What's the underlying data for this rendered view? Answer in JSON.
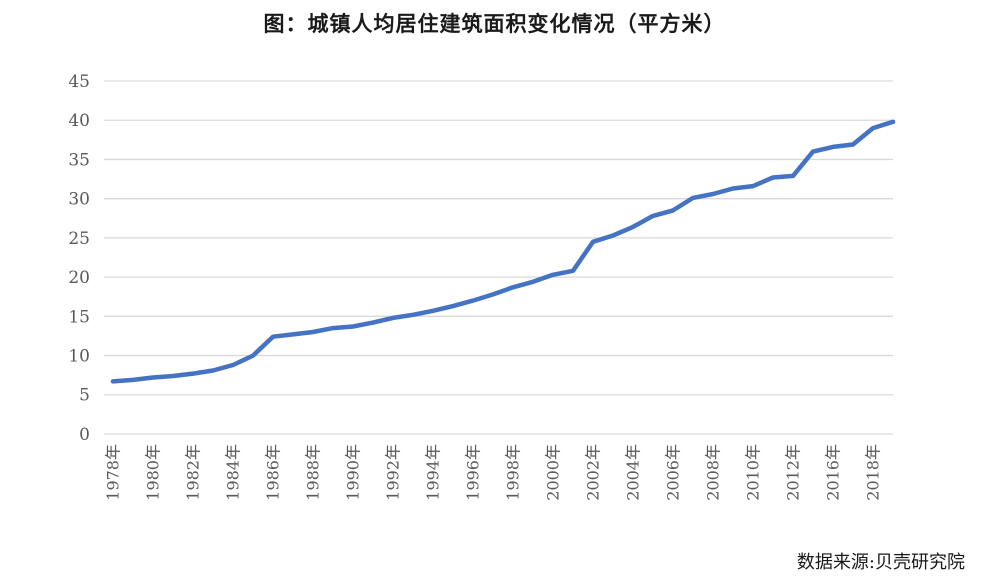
{
  "chart_data": {
    "type": "line",
    "title": "图：城镇人均居住建筑面积变化情况（平方米）",
    "source_note": "数据来源:贝壳研究院",
    "x": [
      1978,
      1979,
      1980,
      1981,
      1982,
      1983,
      1984,
      1985,
      1986,
      1987,
      1988,
      1989,
      1990,
      1991,
      1992,
      1993,
      1994,
      1995,
      1996,
      1997,
      1998,
      1999,
      2000,
      2001,
      2002,
      2003,
      2004,
      2005,
      2006,
      2007,
      2008,
      2009,
      2010,
      2011,
      2012,
      2014,
      2016,
      2017,
      2018,
      2019
    ],
    "values": [
      6.7,
      6.9,
      7.2,
      7.4,
      7.7,
      8.1,
      8.8,
      10.0,
      12.4,
      12.7,
      13.0,
      13.5,
      13.7,
      14.2,
      14.8,
      15.2,
      15.7,
      16.3,
      17.0,
      17.8,
      18.7,
      19.4,
      20.3,
      20.8,
      24.5,
      25.3,
      26.4,
      27.8,
      28.5,
      30.1,
      30.6,
      31.3,
      31.6,
      32.7,
      32.9,
      36.0,
      36.6,
      36.9,
      39.0,
      39.8
    ],
    "x_tick_suffix": "年",
    "x_tick_interval": 2,
    "x_tick_labels": [
      "1978年",
      "1980年",
      "1982年",
      "1984年",
      "1986年",
      "1988年",
      "1990年",
      "1992年",
      "1994年",
      "1996年",
      "1998年",
      "2000年",
      "2002年",
      "2004年",
      "2006年",
      "2008年",
      "2010年",
      "2012年",
      "2016年",
      "2018年"
    ],
    "y_ticks": [
      0,
      5,
      10,
      15,
      20,
      25,
      30,
      35,
      40,
      45
    ],
    "ylim": [
      0,
      45
    ],
    "grid": true,
    "legend_position": "none",
    "line_color": "#4472C4",
    "grid_color": "#D9D9D9",
    "axis_text_color": "#595959"
  }
}
